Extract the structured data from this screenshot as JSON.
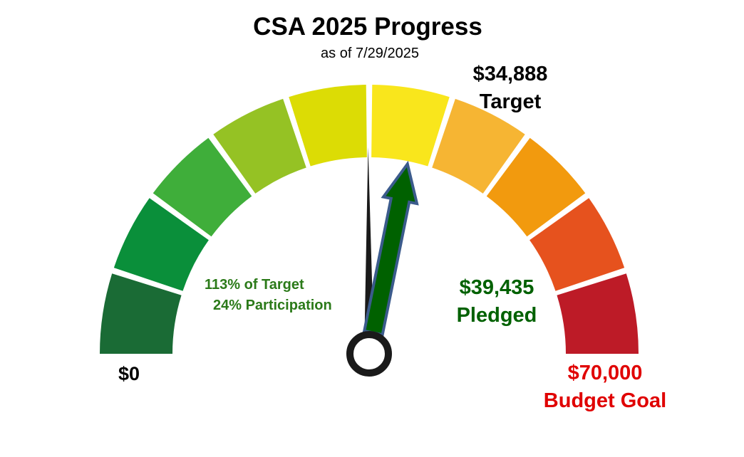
{
  "chart_data": {
    "type": "gauge",
    "title": "CSA 2025 Progress",
    "subtitle": "as of 7/29/2025",
    "min": 0,
    "max": 70000,
    "min_label": "$0",
    "max_value_label": "$70,000",
    "max_label": "Budget Goal",
    "target": 34888,
    "target_value_label": "$34,888",
    "target_label": "Target",
    "pledged": 39435,
    "pledged_value_label": "$39,435",
    "pledged_label": "Pledged",
    "percent_of_target_text": "113% of Target",
    "participation_text": "24% Participation",
    "band_colors": [
      "#1a6b35",
      "#0a8f3a",
      "#3fae3a",
      "#95c224",
      "#dcdc05",
      "#f9e61c",
      "#f6b533",
      "#f29a0e",
      "#e6521e",
      "#bd1b27"
    ],
    "needle_color": "#006100",
    "needle_border_color": "#3b5b8c",
    "pointer_color": "#1a1a1a"
  }
}
